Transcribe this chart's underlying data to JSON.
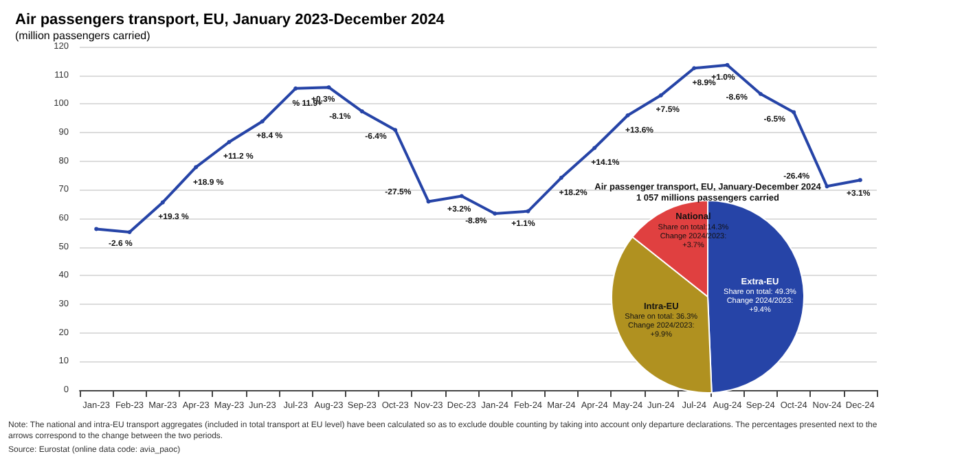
{
  "chart_data": [
    {
      "type": "line",
      "title": "Air passengers transport, EU, January 2023-December 2024",
      "subtitle": "(million passengers carried)",
      "categories": [
        "Jan-23",
        "Feb-23",
        "Mar-23",
        "Apr-23",
        "May-23",
        "Jun-23",
        "Jul-23",
        "Aug-23",
        "Sep-23",
        "Oct-23",
        "Nov-23",
        "Dec-23",
        "Jan-24",
        "Feb-24",
        "Mar-24",
        "Apr-24",
        "May-24",
        "Jun-24",
        "Jul-24",
        "Aug-24",
        "Sep-24",
        "Oct-24",
        "Nov-24",
        "Dec-24"
      ],
      "series": [
        {
          "color": "#2644a7",
          "values": [
            56.3,
            55.2,
            65.6,
            77.9,
            86.7,
            93.9,
            105.4,
            105.8,
            97.4,
            90.9,
            65.9,
            67.8,
            61.7,
            62.5,
            74.2,
            84.6,
            96.0,
            103.0,
            112.5,
            113.6,
            103.5,
            97.1,
            71.2,
            73.4
          ]
        }
      ],
      "ylim": [
        0,
        120
      ],
      "yticks": [
        0,
        10,
        20,
        30,
        40,
        50,
        60,
        70,
        80,
        90,
        100,
        110,
        120
      ],
      "grid": "y",
      "marker": "circle",
      "line_style": "solid",
      "annotations": [
        {
          "text": "-2.6 %",
          "x": "Feb-23",
          "y": 55.2
        },
        {
          "text": "+19.3 %",
          "x": "Mar-23",
          "y": 65.6
        },
        {
          "text": "+18.9 %",
          "x": "Apr-23",
          "y": 77.9
        },
        {
          "text": "+11.2 %",
          "x": "May-23",
          "y": 86.7
        },
        {
          "text": "+8.4 %",
          "x": "Jun-23",
          "y": 93.9
        },
        {
          "text": "% 11.9+",
          "x": "Jul-23",
          "y": 105.4
        },
        {
          "text": "+0.3%",
          "x": "Aug-23",
          "y": 105.8
        },
        {
          "text": "-8.1%",
          "x": "Sep-23",
          "y": 97.4
        },
        {
          "text": "-6.4%",
          "x": "Oct-23",
          "y": 90.9
        },
        {
          "text": "-27.5%",
          "x": "Nov-23",
          "y": 65.9
        },
        {
          "text": "+3.2%",
          "x": "Dec-23",
          "y": 67.8
        },
        {
          "text": "-8.8%",
          "x": "Jan-24",
          "y": 61.7
        },
        {
          "text": "+1.1%",
          "x": "Feb-24",
          "y": 62.5
        },
        {
          "text": "+18.2%",
          "x": "Mar-24",
          "y": 74.2
        },
        {
          "text": "+14.1%",
          "x": "Apr-24",
          "y": 84.6
        },
        {
          "text": "+13.6%",
          "x": "May-24",
          "y": 96.0
        },
        {
          "text": "+7.5%",
          "x": "Jun-24",
          "y": 103.0
        },
        {
          "text": "+8.9%",
          "x": "Jul-24",
          "y": 112.5
        },
        {
          "text": "+1.0%",
          "x": "Aug-24",
          "y": 113.6
        },
        {
          "text": "-8.6%",
          "x": "Sep-24",
          "y": 103.5
        },
        {
          "text": "-6.5%",
          "x": "Oct-24",
          "y": 97.1
        },
        {
          "text": "-26.4%",
          "x": "Nov-24",
          "y": 71.2
        },
        {
          "text": "+3.1%",
          "x": "Dec-24",
          "y": 73.4
        },
        "Note: The national and intra-EU transport aggregates (included in total transport at EU level) have been calculated so as to exclude double counting by taking into account only departure declarations. The percentages presented next to the arrows correspond to the change between the two periods.",
        "Source: Eurostat (online data code: avia_paoc)"
      ]
    },
    {
      "type": "pie",
      "title": "Air passenger transport, EU, January-December 2024",
      "subtitle": "1 057 millions passengers carried",
      "categories": [
        "Extra-EU",
        "Intra-EU",
        "National"
      ],
      "values": [
        49.3,
        36.3,
        14.3
      ],
      "colors": [
        "#2644a7",
        "#b09120",
        "#e04040"
      ],
      "value_labels": [
        "Share on total: 49.3%\nChange 2024/2023:\n+9.4%",
        "Share on total: 36.3%\nChange 2024/2023:\n+9.9%",
        "Share on total:14.3%\nChange 2024/2023:\n+3.7%"
      ]
    }
  ]
}
